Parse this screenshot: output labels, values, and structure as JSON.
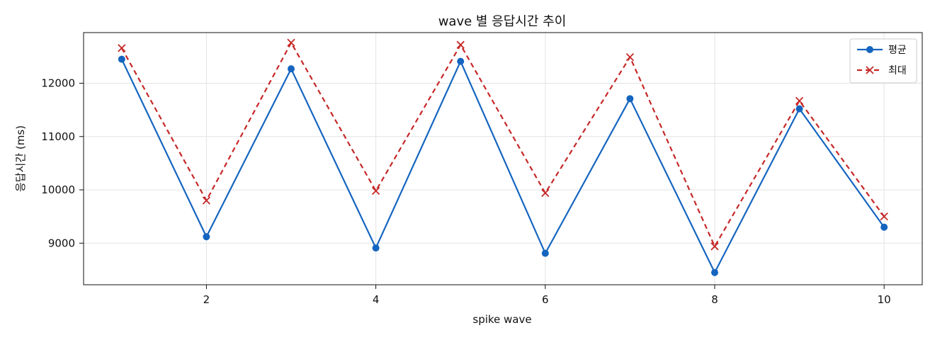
{
  "chart_data": {
    "type": "line",
    "title": "wave 별 응답시간 추이",
    "xlabel": "spike wave",
    "ylabel": "응답시간 (ms)",
    "x": [
      1,
      2,
      3,
      4,
      5,
      6,
      7,
      8,
      9,
      10
    ],
    "xlim": [
      0.55,
      10.45
    ],
    "ylim": [
      8220,
      12950
    ],
    "x_ticks": [
      2,
      4,
      6,
      8,
      10
    ],
    "y_ticks": [
      9000,
      10000,
      11000,
      12000
    ],
    "grid": true,
    "legend": "top-right",
    "series": [
      {
        "name": "평균",
        "color": "#1565C0",
        "marker": "circle",
        "line_style": "solid",
        "values": [
          12450,
          9120,
          12270,
          8910,
          12410,
          8810,
          11710,
          8450,
          11520,
          9300
        ]
      },
      {
        "name": "최대",
        "color": "#C62828",
        "marker": "x",
        "line_style": "dashed",
        "values": [
          12660,
          9800,
          12760,
          9980,
          12720,
          9940,
          12490,
          8940,
          11670,
          9500
        ]
      }
    ]
  }
}
